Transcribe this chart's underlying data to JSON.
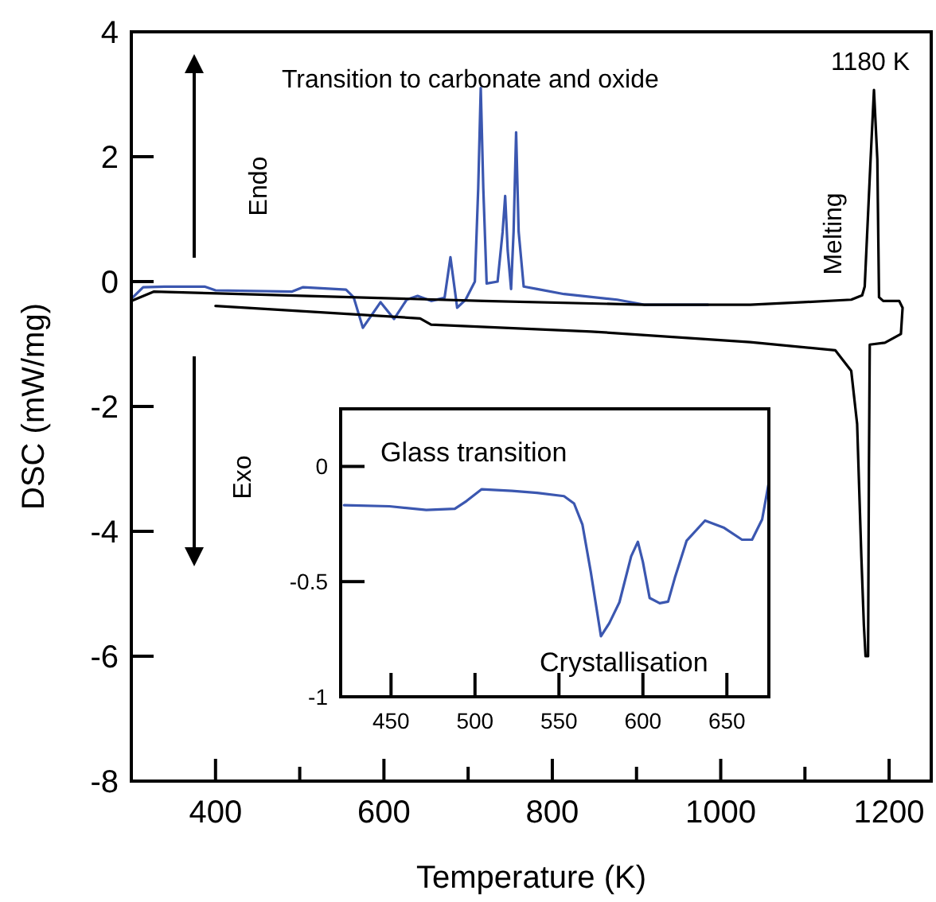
{
  "chart_data": [
    {
      "type": "line",
      "xlabel": "Temperature (K)",
      "ylabel": "DSC (mW/mg)",
      "xlim": [
        300,
        1250
      ],
      "ylim": [
        -8,
        4
      ],
      "xticks": [
        400,
        {
          "value": 500,
          "label": null
        },
        600,
        {
          "value": 700,
          "label": null
        },
        800,
        {
          "value": 900,
          "label": null
        },
        1000,
        {
          "value": 1100,
          "label": null
        },
        1200
      ],
      "yticks": [
        -8,
        -6,
        -4,
        -2,
        0,
        2,
        4
      ],
      "annotations": [
        "Transition to carbonate and oxide",
        "1180 K",
        "Endo",
        "Exo",
        "Melting"
      ],
      "series": [
        {
          "color": "#3b57b0",
          "x": [
            302,
            314,
            339,
            387,
            400,
            491,
            504,
            555,
            564,
            575,
            596,
            612,
            627,
            640,
            656,
            672,
            679,
            687,
            697,
            708,
            712,
            715,
            718,
            722,
            735,
            741,
            744,
            747,
            751,
            754,
            757,
            760,
            766,
            782,
            814,
            877,
            909,
            985
          ],
          "values": [
            -0.25,
            -0.09,
            -0.08,
            -0.08,
            -0.14,
            -0.16,
            -0.09,
            -0.13,
            -0.25,
            -0.74,
            -0.33,
            -0.6,
            -0.29,
            -0.23,
            -0.31,
            -0.26,
            0.39,
            -0.42,
            -0.29,
            0.0,
            1.5,
            3.1,
            1.5,
            -0.03,
            0.0,
            0.8,
            1.37,
            0.5,
            -0.12,
            0.8,
            2.39,
            0.8,
            -0.08,
            -0.12,
            -0.2,
            -0.29,
            -0.37,
            -0.37
          ]
        },
        {
          "color": "#000000",
          "x": [
            302,
            327,
            403,
            719,
            909,
            1035,
            1098,
            1155,
            1168,
            1171,
            1178,
            1182,
            1186,
            1188,
            1193,
            1212,
            1216,
            1214,
            1195,
            1177,
            1176,
            1175,
            1172,
            1170,
            1167,
            1162,
            1155,
            1136,
            1035,
            846,
            656,
            643,
            400
          ],
          "values": [
            -0.3,
            -0.16,
            -0.19,
            -0.31,
            -0.37,
            -0.37,
            -0.33,
            -0.29,
            -0.22,
            -0.08,
            1.96,
            3.07,
            1.96,
            -0.25,
            -0.31,
            -0.31,
            -0.42,
            -0.84,
            -0.98,
            -1.01,
            -3,
            -6.0,
            -6.0,
            -5.5,
            -4.4,
            -2.28,
            -1.43,
            -1.1,
            -0.97,
            -0.8,
            -0.69,
            -0.59,
            -0.39
          ]
        }
      ]
    },
    {
      "type": "line",
      "xlim": [
        420,
        675
      ],
      "ylim": [
        -1,
        0.25
      ],
      "xticks": [
        450,
        500,
        550,
        600,
        650
      ],
      "yticks": [
        -1,
        -0.5,
        0
      ],
      "annotations": [
        "Glass transition",
        "Crystallisation"
      ],
      "series": [
        {
          "color": "#3b57b0",
          "x": [
            422,
            449,
            471,
            488,
            495,
            504,
            522,
            537,
            553,
            559,
            564,
            569,
            575,
            580,
            586,
            593,
            597,
            600,
            604,
            610,
            615,
            619,
            626,
            637,
            648,
            659,
            665,
            671,
            675
          ],
          "values": [
            -0.168,
            -0.173,
            -0.189,
            -0.184,
            -0.15,
            -0.099,
            -0.106,
            -0.115,
            -0.129,
            -0.161,
            -0.253,
            -0.46,
            -0.737,
            -0.68,
            -0.59,
            -0.39,
            -0.327,
            -0.415,
            -0.571,
            -0.594,
            -0.587,
            -0.484,
            -0.323,
            -0.235,
            -0.265,
            -0.318,
            -0.318,
            -0.23,
            -0.069
          ]
        }
      ]
    }
  ]
}
